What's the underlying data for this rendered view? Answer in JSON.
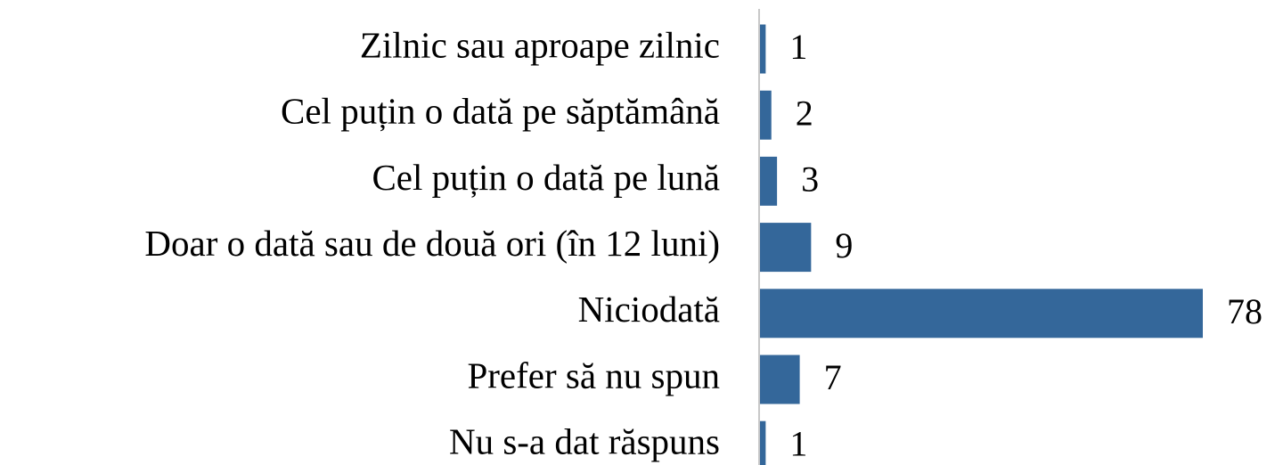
{
  "chart_data": {
    "type": "hbar",
    "categories": [
      "Zilnic sau aproape zilnic",
      "Cel puțin o dată pe săptămână",
      "Cel puțin o dată pe lună",
      "Doar o dată sau de două ori (în 12 luni)",
      "Niciodată",
      "Prefer să nu spun",
      "Nu s-a dat răspuns"
    ],
    "values": [
      1,
      2,
      3,
      9,
      78,
      7,
      1
    ],
    "color": "#34679a"
  }
}
